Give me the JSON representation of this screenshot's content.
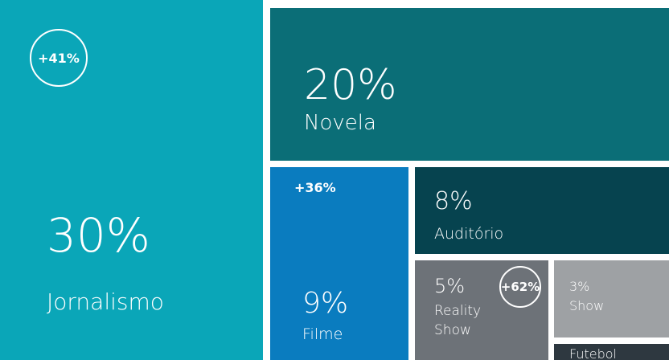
{
  "chart_data": {
    "type": "treemap",
    "items": [
      {
        "name": "Jornalismo",
        "value": 30,
        "value_label": "30%",
        "badge": "+41%",
        "color": "#0aa6b8"
      },
      {
        "name": "Novela",
        "value": 20,
        "value_label": "20%",
        "color": "#0b6e77"
      },
      {
        "name": "Filme",
        "value": 9,
        "value_label": "9%",
        "badge": "+36%",
        "color": "#0a7cbf"
      },
      {
        "name": "Auditório",
        "value": 8,
        "value_label": "8%",
        "color": "#06434f"
      },
      {
        "name": "Reality Show",
        "value": 5,
        "value_label": "5%",
        "badge": "+62%",
        "color": "#6d7278"
      },
      {
        "name": "Show",
        "value": 3,
        "value_label": "3%",
        "color": "#9ea1a4"
      },
      {
        "name": "Futebol",
        "value": 1,
        "color": "#2e3840"
      }
    ]
  }
}
